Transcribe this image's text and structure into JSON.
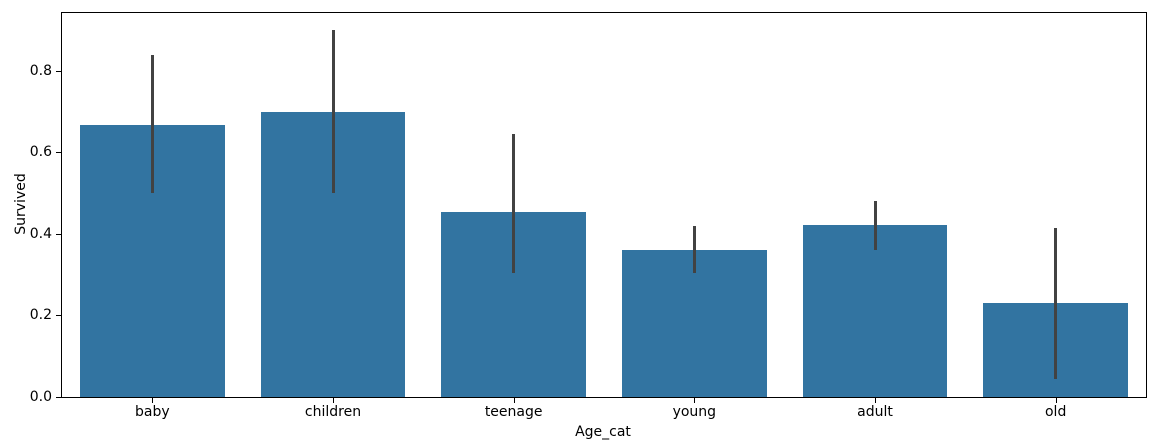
{
  "figure": {
    "background": "#ffffff",
    "text_color": "#000000"
  },
  "chart_data": {
    "type": "bar",
    "title": "",
    "xlabel": "Age_cat",
    "ylabel": "Survived",
    "categories": [
      "baby",
      "children",
      "teenage",
      "young",
      "adult",
      "old"
    ],
    "values": [
      0.667,
      0.7,
      0.455,
      0.36,
      0.423,
      0.23
    ],
    "error_bars": [
      {
        "low": 0.5,
        "high": 0.84
      },
      {
        "low": 0.5,
        "high": 0.9
      },
      {
        "low": 0.305,
        "high": 0.645
      },
      {
        "low": 0.305,
        "high": 0.42
      },
      {
        "low": 0.36,
        "high": 0.48
      },
      {
        "low": 0.045,
        "high": 0.415
      }
    ],
    "yticks": [
      0.0,
      0.2,
      0.4,
      0.6,
      0.8
    ],
    "ytick_labels": [
      "0.0",
      "0.2",
      "0.4",
      "0.6",
      "0.8"
    ],
    "ylim": [
      0,
      0.942
    ],
    "bar_width_fraction": 0.8,
    "bar_color": "#3274a1",
    "error_bar_color": "#424242",
    "grid": false,
    "legend": null
  }
}
